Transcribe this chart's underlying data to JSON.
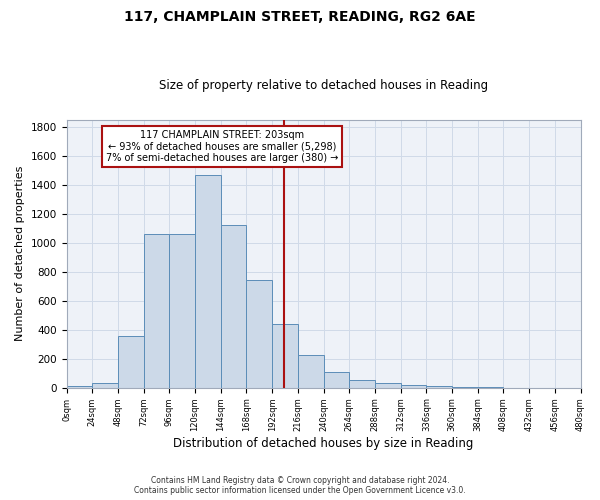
{
  "title": "117, CHAMPLAIN STREET, READING, RG2 6AE",
  "subtitle": "Size of property relative to detached houses in Reading",
  "xlabel": "Distribution of detached houses by size in Reading",
  "ylabel": "Number of detached properties",
  "bar_color": "#ccd9e8",
  "bar_edge_color": "#5b8db8",
  "grid_color": "#d0dae8",
  "bg_color": "#eef2f8",
  "vline_x": 203,
  "vline_color": "#aa1111",
  "annotation_box_color": "#aa1111",
  "annotation_line1": "117 CHAMPLAIN STREET: 203sqm",
  "annotation_line2": "← 93% of detached houses are smaller (5,298)",
  "annotation_line3": "7% of semi-detached houses are larger (380) →",
  "bin_edges": [
    0,
    24,
    48,
    72,
    96,
    120,
    144,
    168,
    192,
    216,
    240,
    264,
    288,
    312,
    336,
    360,
    384,
    408,
    432,
    456,
    480
  ],
  "bin_counts": [
    10,
    33,
    355,
    1063,
    1063,
    1465,
    1120,
    745,
    440,
    225,
    110,
    55,
    32,
    20,
    12,
    6,
    3,
    1,
    1,
    0
  ],
  "ylim": [
    0,
    1850
  ],
  "xlim": [
    0,
    480
  ],
  "yticks": [
    0,
    200,
    400,
    600,
    800,
    1000,
    1200,
    1400,
    1600,
    1800
  ],
  "footer_line1": "Contains HM Land Registry data © Crown copyright and database right 2024.",
  "footer_line2": "Contains public sector information licensed under the Open Government Licence v3.0."
}
